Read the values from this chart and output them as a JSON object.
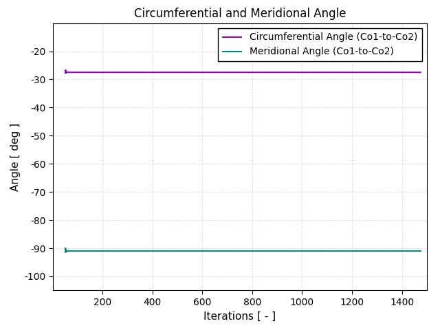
{
  "title": "Circumferential and Meridional Angle",
  "xlabel": "Iterations [ - ]",
  "ylabel": "Angle [ deg ]",
  "xlim": [
    0,
    1500
  ],
  "ylim": [
    -105,
    -10
  ],
  "yticks": [
    -100,
    -90,
    -80,
    -70,
    -60,
    -50,
    -40,
    -30,
    -20
  ],
  "xticks": [
    200,
    400,
    600,
    800,
    1000,
    1200,
    1400
  ],
  "x_start": 50,
  "x_end": 1475,
  "circ_value": -27.5,
  "merid_value": -91.0,
  "circ_color": "#9900cc",
  "merid_color": "#00897b",
  "circ_label": "Circumferential Angle (Co1-to-Co2)",
  "merid_label": "Meridional Angle (Co1-to-Co2)",
  "line_width": 1.5,
  "background_color": "#ffffff",
  "grid_color": "#cccccc",
  "title_fontsize": 12,
  "label_fontsize": 11,
  "tick_fontsize": 10,
  "legend_fontsize": 10
}
